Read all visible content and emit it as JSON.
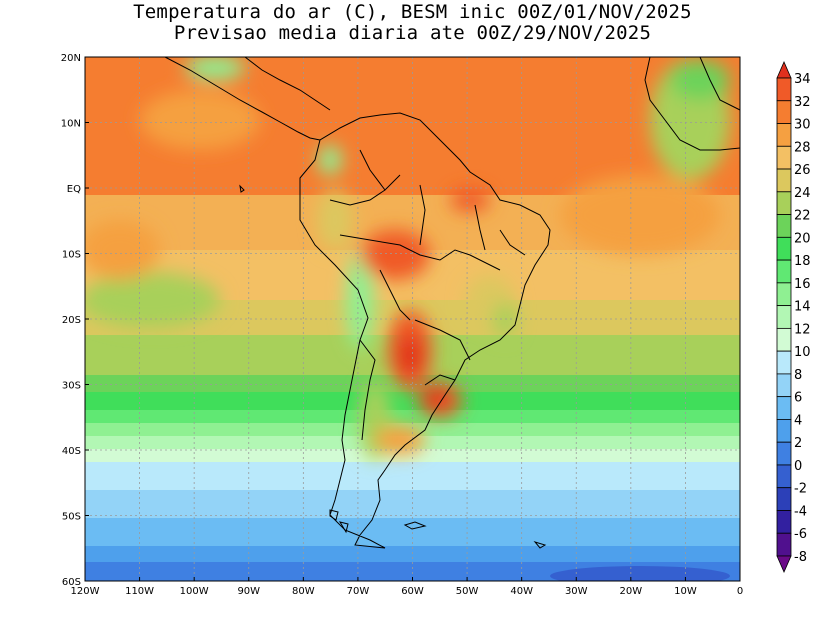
{
  "title": {
    "line1": "Temperatura do ar (C), BESM inic 00Z/01/NOV/2025",
    "line2": "Previsao media diaria ate 00Z/29/NOV/2025"
  },
  "map": {
    "lon_range": [
      -120,
      0
    ],
    "lat_range": [
      -60,
      20
    ],
    "lon_ticks": [
      "120W",
      "110W",
      "100W",
      "90W",
      "80W",
      "70W",
      "60W",
      "50W",
      "40W",
      "30W",
      "20W",
      "10W",
      "0"
    ],
    "lat_ticks": [
      "20N",
      "10N",
      "EQ",
      "10S",
      "20S",
      "30S",
      "40S",
      "50S",
      "60S"
    ],
    "grid": "dotted"
  },
  "colorbar": {
    "labels": [
      "34",
      "32",
      "30",
      "28",
      "26",
      "24",
      "22",
      "20",
      "18",
      "16",
      "14",
      "12",
      "10",
      "8",
      "6",
      "4",
      "2",
      "0",
      "-2",
      "-4",
      "-6",
      "-8"
    ],
    "colors": [
      "#e0301e",
      "#f05a28",
      "#f57d30",
      "#f5a041",
      "#f3c064",
      "#dcc85e",
      "#a8d05a",
      "#6cd35a",
      "#40de5a",
      "#60e873",
      "#8ff092",
      "#b2f7b4",
      "#d2fbd4",
      "#b9e9fb",
      "#93d3f7",
      "#6bbcf3",
      "#4ea0ec",
      "#3f80e2",
      "#3560d0",
      "#2c40b8",
      "#3220a0",
      "#50108e",
      "#6a0a88"
    ]
  }
}
